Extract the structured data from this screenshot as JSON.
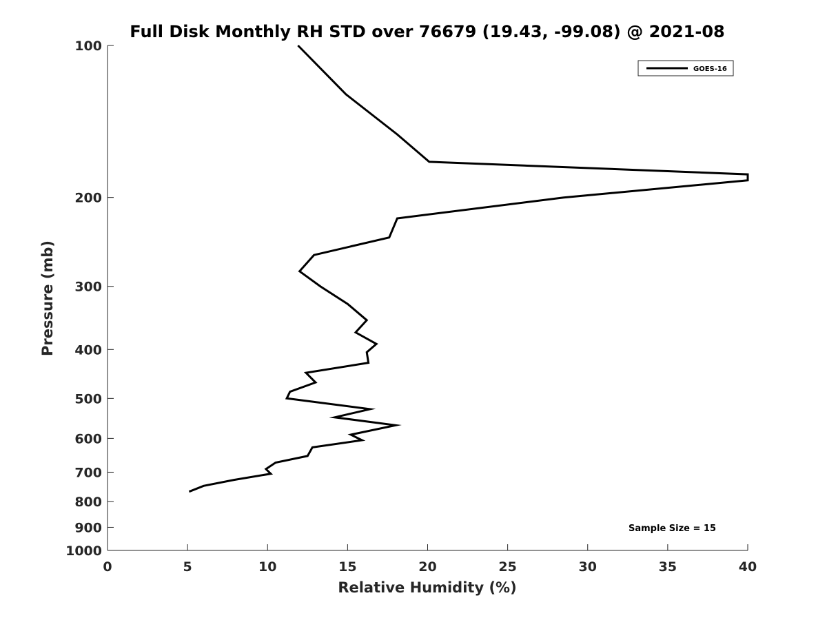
{
  "chart_data": {
    "type": "line",
    "title": "Full Disk Monthly RH STD over 76679 (19.43, -99.08) @ 2021-08",
    "xlabel": "Relative Humidity (%)",
    "ylabel": "Pressure (mb)",
    "xlim": [
      0,
      40
    ],
    "ylim": [
      1000,
      100
    ],
    "y_scale": "log",
    "y_reversed": true,
    "grid": false,
    "legend_position": "top-right",
    "x_ticks": [
      "0",
      "5",
      "10",
      "15",
      "20",
      "25",
      "30",
      "35",
      "40"
    ],
    "y_ticks": [
      "100",
      "200",
      "300",
      "400",
      "500",
      "600",
      "700",
      "800",
      "900",
      "1000"
    ],
    "series": [
      {
        "name": "GOES-16",
        "color": "#000000",
        "points": [
          {
            "x": 11.9,
            "y": 100
          },
          {
            "x": 14.9,
            "y": 125
          },
          {
            "x": 18.1,
            "y": 150
          },
          {
            "x": 20.1,
            "y": 170
          },
          {
            "x": 40.0,
            "y": 180
          },
          {
            "x": 40.0,
            "y": 185
          },
          {
            "x": 28.5,
            "y": 200
          },
          {
            "x": 18.1,
            "y": 220
          },
          {
            "x": 17.6,
            "y": 240
          },
          {
            "x": 12.9,
            "y": 260
          },
          {
            "x": 12.0,
            "y": 280
          },
          {
            "x": 13.3,
            "y": 300
          },
          {
            "x": 15.0,
            "y": 325
          },
          {
            "x": 16.2,
            "y": 350
          },
          {
            "x": 15.5,
            "y": 370
          },
          {
            "x": 16.8,
            "y": 390
          },
          {
            "x": 16.2,
            "y": 405
          },
          {
            "x": 16.3,
            "y": 425
          },
          {
            "x": 12.4,
            "y": 445
          },
          {
            "x": 13.0,
            "y": 465
          },
          {
            "x": 11.4,
            "y": 485
          },
          {
            "x": 11.2,
            "y": 500
          },
          {
            "x": 16.4,
            "y": 525
          },
          {
            "x": 14.2,
            "y": 545
          },
          {
            "x": 18.0,
            "y": 565
          },
          {
            "x": 15.2,
            "y": 590
          },
          {
            "x": 15.9,
            "y": 605
          },
          {
            "x": 12.8,
            "y": 625
          },
          {
            "x": 12.5,
            "y": 650
          },
          {
            "x": 10.5,
            "y": 670
          },
          {
            "x": 9.9,
            "y": 690
          },
          {
            "x": 10.2,
            "y": 705
          },
          {
            "x": 7.9,
            "y": 725
          },
          {
            "x": 6.0,
            "y": 745
          },
          {
            "x": 5.1,
            "y": 765
          }
        ]
      }
    ],
    "annotations": [
      "Sample Size = 15"
    ]
  }
}
